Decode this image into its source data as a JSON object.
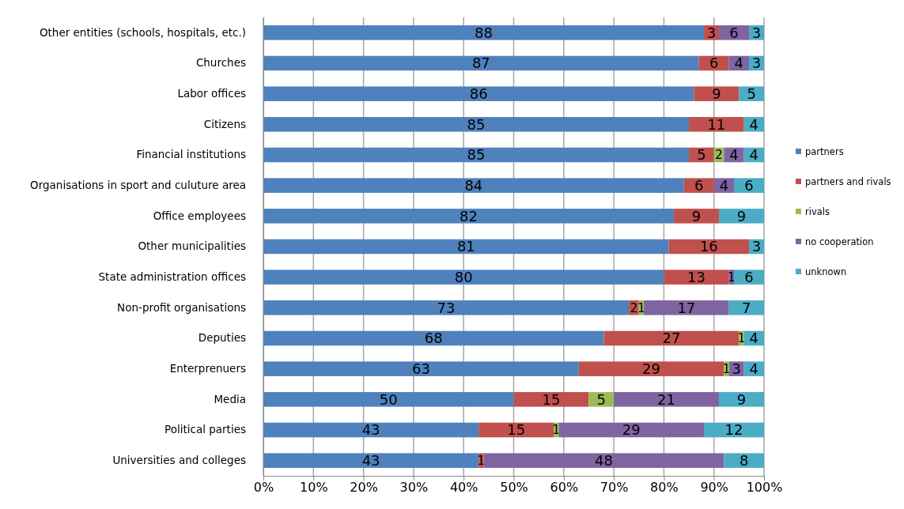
{
  "chart_data": {
    "type": "bar",
    "orientation": "horizontal",
    "stacked": true,
    "data_labels": true,
    "grid": "x",
    "legend": "right",
    "categories": [
      "Other entities (schools, hospitals, etc.)",
      "Churches",
      "Labor offices",
      "Citizens",
      "Financial institutions",
      "Organisations in sport and culuture area",
      "Office employees",
      "Other municipalities",
      "State administration offices",
      "Non-profit organisations",
      "Deputies",
      "Enterprenuers",
      "Media",
      "Political parties",
      "Universities and colleges"
    ],
    "xlim": [
      0,
      100
    ],
    "xticks": [
      {
        "value": 0,
        "label": "0%"
      },
      {
        "value": 10,
        "label": "10%"
      },
      {
        "value": 20,
        "label": "20%"
      },
      {
        "value": 30,
        "label": "30%"
      },
      {
        "value": 40,
        "label": "40%"
      },
      {
        "value": 50,
        "label": "50%"
      },
      {
        "value": 60,
        "label": "60%"
      },
      {
        "value": 70,
        "label": "70%"
      },
      {
        "value": 80,
        "label": "80%"
      },
      {
        "value": 90,
        "label": "90%"
      },
      {
        "value": 100,
        "label": "100%"
      }
    ],
    "series": [
      {
        "name": "partners",
        "color": "#4f81bd",
        "values": [
          88,
          87,
          86,
          85,
          85,
          84,
          82,
          81,
          80,
          73,
          68,
          63,
          50,
          43,
          43
        ]
      },
      {
        "name": "partners and rivals",
        "color": "#c0504d",
        "values": [
          3,
          6,
          9,
          11,
          5,
          6,
          9,
          16,
          13,
          2,
          27,
          29,
          15,
          15,
          1
        ]
      },
      {
        "name": "rivals",
        "color": "#9bbb59",
        "values": [
          null,
          null,
          null,
          null,
          2,
          null,
          null,
          null,
          null,
          1,
          1,
          1,
          5,
          1,
          null
        ]
      },
      {
        "name": "no cooperation",
        "color": "#8064a2",
        "values": [
          6,
          4,
          null,
          null,
          4,
          4,
          null,
          null,
          1,
          17,
          null,
          3,
          21,
          29,
          48
        ]
      },
      {
        "name": "unknown",
        "color": "#4bacc6",
        "values": [
          3,
          3,
          5,
          4,
          4,
          6,
          9,
          3,
          6,
          7,
          4,
          4,
          9,
          12,
          8
        ]
      }
    ]
  }
}
